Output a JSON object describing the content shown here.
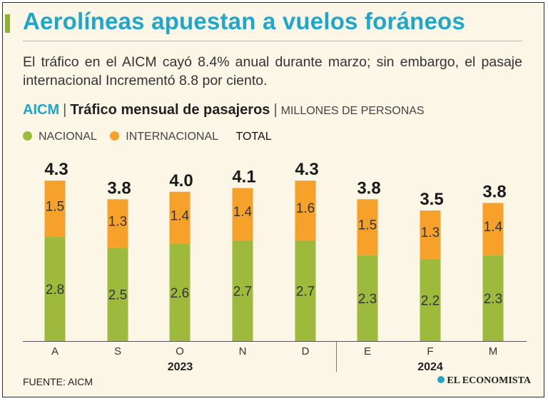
{
  "header": {
    "title": "Aerolíneas apuestan a vuelos foráneos",
    "subtitle": "El tráfico en el AICM cayó 8.4% anual durante marzo; sin embargo, el pasaje internacional Incrementó 8.8 por ciento."
  },
  "chart_header": {
    "acronym": "AICM",
    "separator": "|",
    "title": "Tráfico mensual de pasajeros",
    "unit": "MILLONES DE PERSONAS"
  },
  "legend": {
    "nacional": "NACIONAL",
    "internacional": "INTERNACIONAL",
    "total": "TOTAL"
  },
  "colors": {
    "nacional": "#9dba3c",
    "internacional": "#f6a12a",
    "title": "#1fa6c9",
    "accent_bar": "#8cb335"
  },
  "chart_data": {
    "type": "bar",
    "stacked": true,
    "title": "Tráfico mensual de pasajeros",
    "ylabel": "MILLONES DE PERSONAS",
    "categories": [
      "A",
      "S",
      "O",
      "N",
      "D",
      "E",
      "F",
      "M"
    ],
    "series": [
      {
        "name": "NACIONAL",
        "values": [
          2.8,
          2.5,
          2.6,
          2.7,
          2.7,
          2.3,
          2.2,
          2.3
        ]
      },
      {
        "name": "INTERNACIONAL",
        "values": [
          1.5,
          1.3,
          1.4,
          1.4,
          1.6,
          1.5,
          1.3,
          1.4
        ]
      }
    ],
    "totals": [
      "4.3",
      "3.8",
      "4.0",
      "4.1",
      "4.3",
      "3.8",
      "3.5",
      "3.8"
    ],
    "nacional_labels": [
      "2.8",
      "2.5",
      "2.6",
      "2.7",
      "2.7",
      "2.3",
      "2.2",
      "2.3"
    ],
    "internacional_labels": [
      "1.5",
      "1.3",
      "1.4",
      "1.4",
      "1.6",
      "1.5",
      "1.3",
      "1.4"
    ],
    "year_groups": [
      {
        "label": "2023",
        "from": 0,
        "to": 4
      },
      {
        "label": "2024",
        "from": 5,
        "to": 7
      }
    ],
    "ylim": [
      0,
      4.5
    ],
    "grid": false
  },
  "footer": {
    "source": "FUENTE: AICM",
    "brand": "EL ECONOMISTA"
  }
}
